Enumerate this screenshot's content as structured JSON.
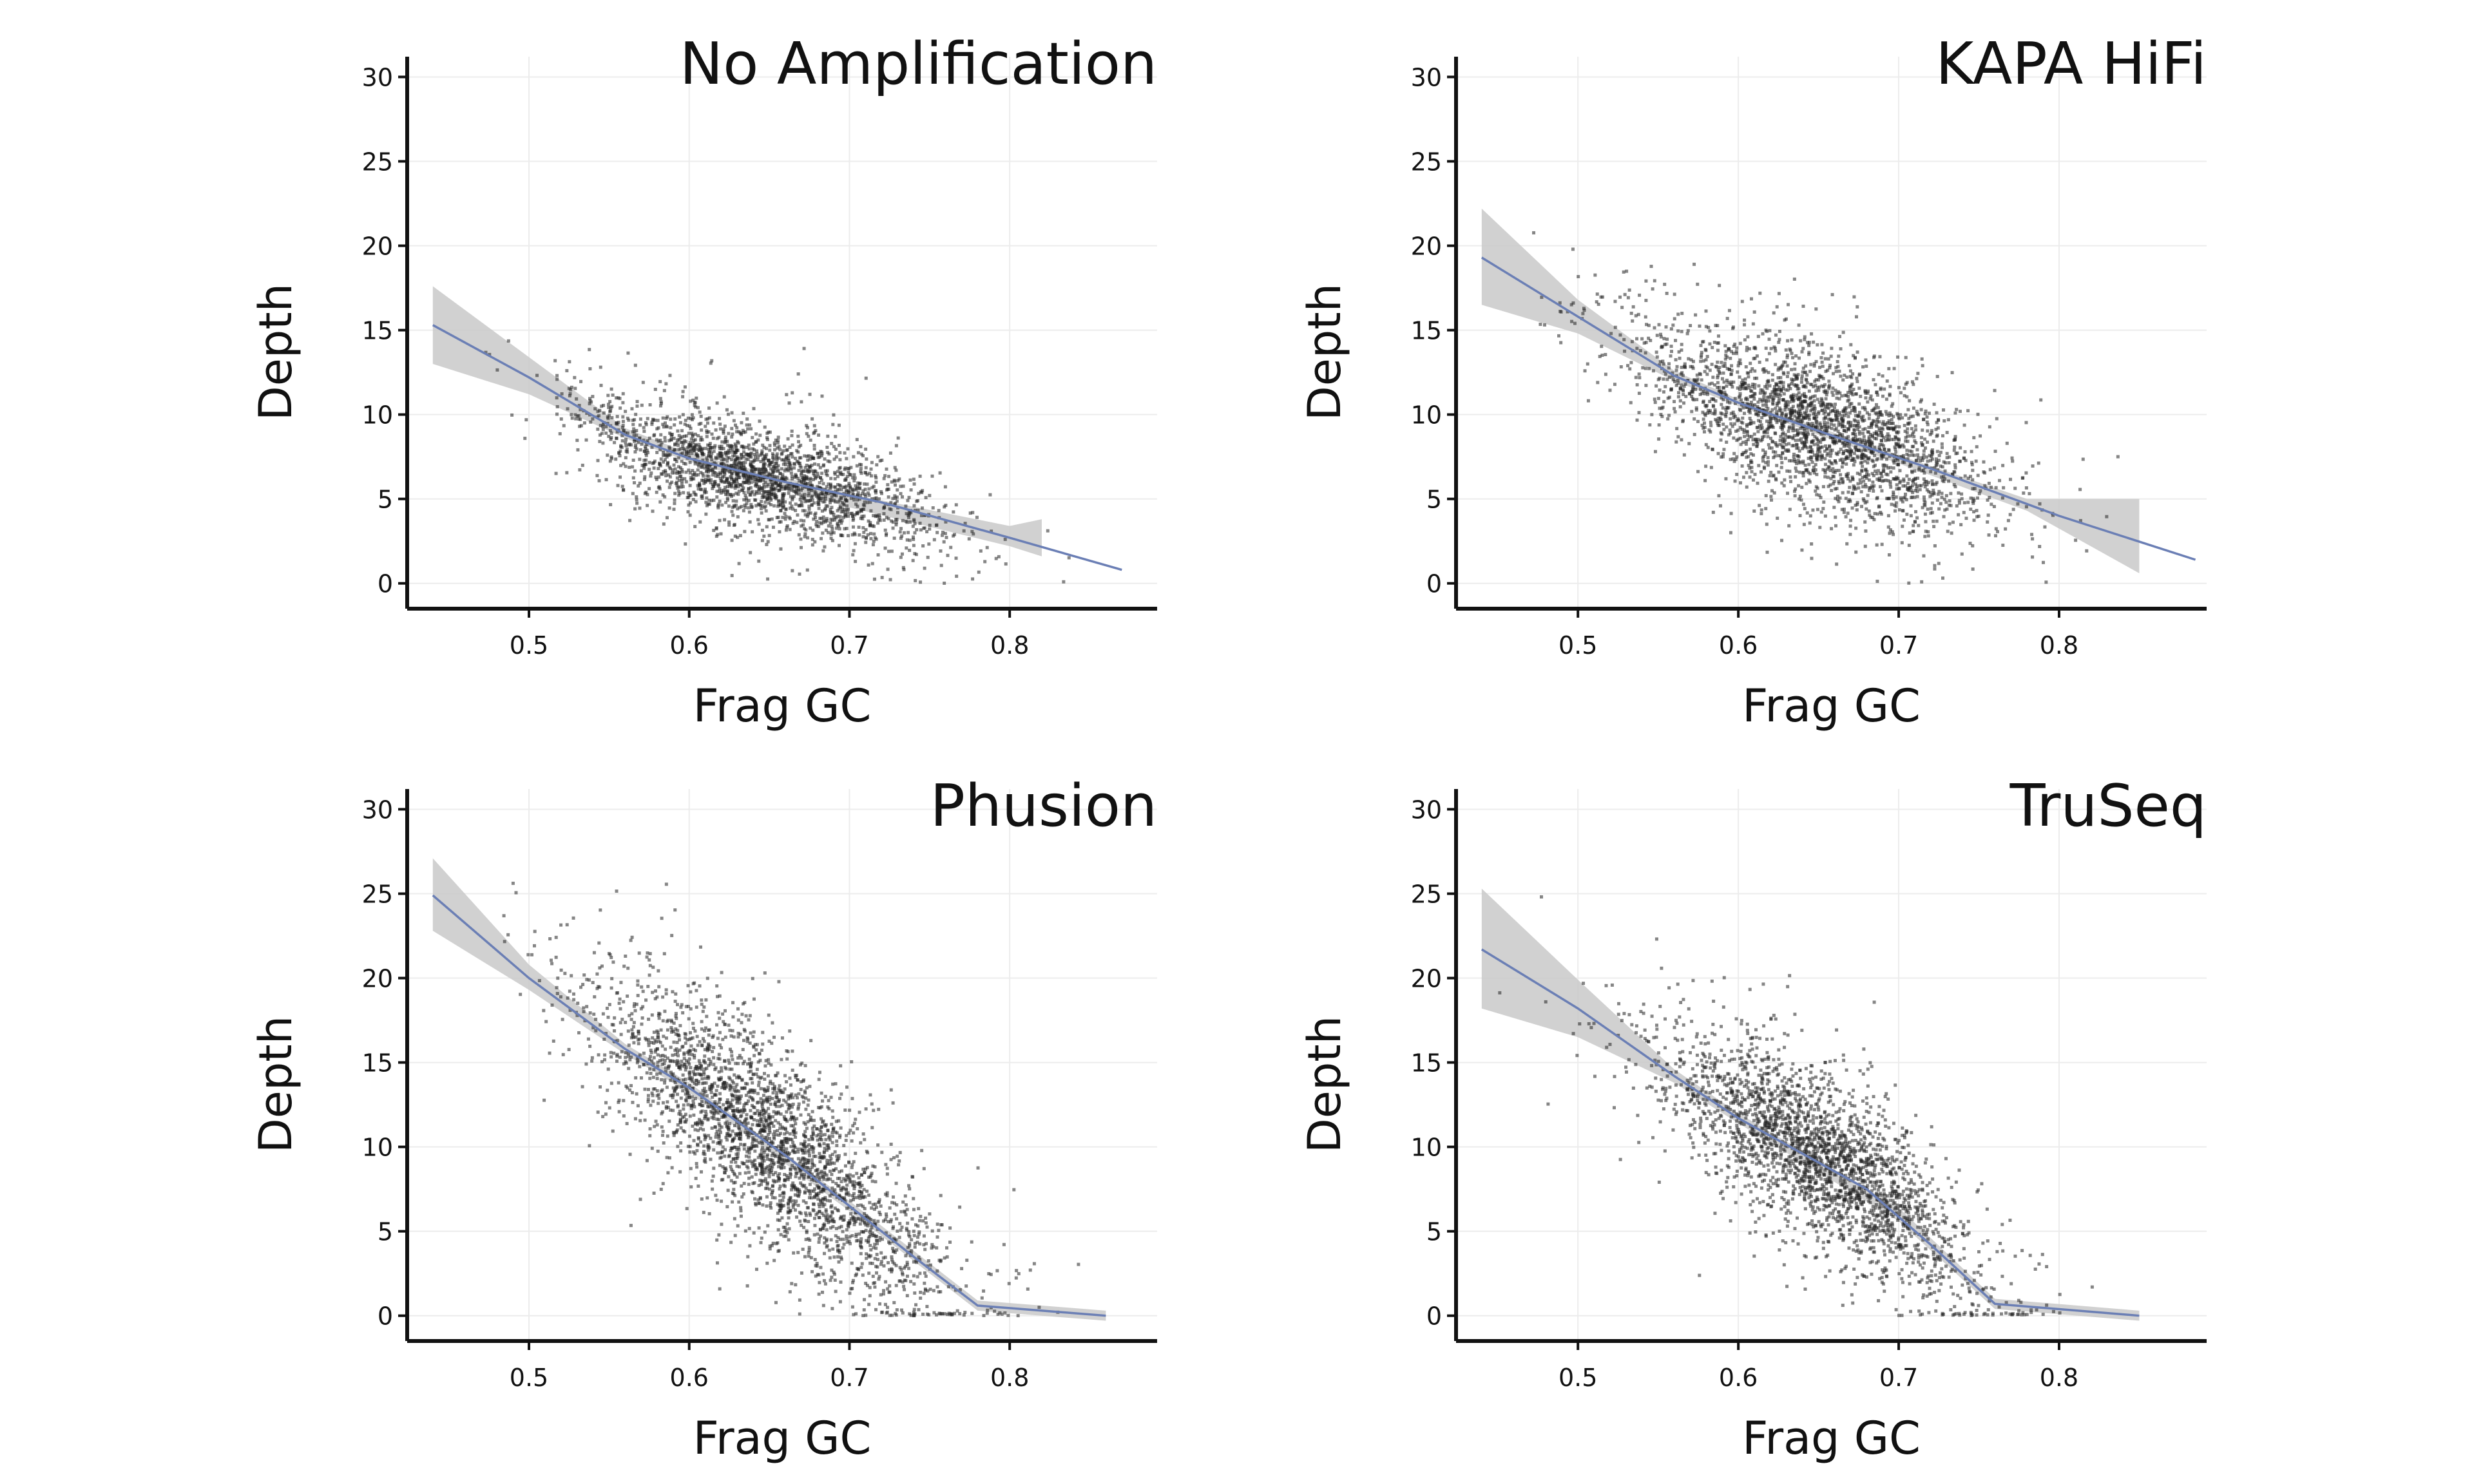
{
  "colors": {
    "points": "#222222",
    "band": "#c9c9c9",
    "trend": "#6b7fb5",
    "axis": "#111111",
    "grid": "#ececec"
  },
  "chart_data": [
    {
      "type": "scatter",
      "title": "No Amplification",
      "xlabel": "Frag GC",
      "ylabel": "Depth",
      "xlim": [
        0.424,
        0.892
      ],
      "ylim": [
        -1.5,
        31.2
      ],
      "xticks": [
        0.5,
        0.6,
        0.7,
        0.8
      ],
      "yticks": [
        0,
        5,
        10,
        15,
        20,
        25,
        30
      ],
      "grid": true,
      "point_cloud": {
        "x_center": 0.645,
        "x_spread": 0.055,
        "y_at_x": [
          [
            0.44,
            15.3
          ],
          [
            0.57,
            8.0
          ],
          [
            0.7,
            5.0
          ],
          [
            0.87,
            1.0
          ]
        ],
        "y_spread": 1.6,
        "n": 2200
      },
      "trend": {
        "x": [
          0.44,
          0.5,
          0.56,
          0.6,
          0.66,
          0.72,
          0.8,
          0.87
        ],
        "y": [
          15.3,
          12.2,
          8.8,
          7.4,
          6.0,
          4.8,
          2.7,
          0.8
        ]
      },
      "band": {
        "x": [
          0.44,
          0.5,
          0.56,
          0.6,
          0.7,
          0.8,
          0.82
        ],
        "lower": [
          13.0,
          11.2,
          8.6,
          7.2,
          4.5,
          2.2,
          1.6
        ],
        "upper": [
          17.6,
          13.4,
          9.2,
          7.7,
          5.3,
          3.4,
          3.8
        ]
      }
    },
    {
      "type": "scatter",
      "title": "KAPA HiFi",
      "xlabel": "Frag GC",
      "ylabel": "Depth",
      "xlim": [
        0.424,
        0.892
      ],
      "ylim": [
        -1.5,
        31.2
      ],
      "xticks": [
        0.5,
        0.6,
        0.7,
        0.8
      ],
      "yticks": [
        0,
        5,
        10,
        15,
        20,
        25,
        30
      ],
      "grid": true,
      "point_cloud": {
        "x_center": 0.65,
        "x_spread": 0.055,
        "y_at_x": [
          [
            0.44,
            19.5
          ],
          [
            0.56,
            12.3
          ],
          [
            0.7,
            7.5
          ],
          [
            0.88,
            1.5
          ]
        ],
        "y_spread": 2.3,
        "n": 2600
      },
      "trend": {
        "x": [
          0.44,
          0.5,
          0.56,
          0.6,
          0.66,
          0.72,
          0.8,
          0.885
        ],
        "y": [
          19.3,
          15.8,
          12.3,
          10.7,
          8.7,
          6.8,
          4.0,
          1.4
        ]
      },
      "band": {
        "x": [
          0.44,
          0.5,
          0.56,
          0.6,
          0.7,
          0.78,
          0.85
        ],
        "lower": [
          16.5,
          14.8,
          12.0,
          10.5,
          7.1,
          4.3,
          0.6
        ],
        "upper": [
          22.2,
          16.8,
          12.6,
          10.9,
          7.6,
          5.0,
          5.0
        ]
      }
    },
    {
      "type": "scatter",
      "title": "Phusion",
      "xlabel": "Frag GC",
      "ylabel": "Depth",
      "xlim": [
        0.424,
        0.892
      ],
      "ylim": [
        -1.5,
        31.2
      ],
      "xticks": [
        0.5,
        0.6,
        0.7,
        0.8
      ],
      "yticks": [
        0,
        5,
        10,
        15,
        20,
        25,
        30
      ],
      "grid": true,
      "point_cloud": {
        "x_center": 0.65,
        "x_spread": 0.055,
        "y_at_x": [
          [
            0.44,
            25.0
          ],
          [
            0.56,
            16.5
          ],
          [
            0.65,
            10.5
          ],
          [
            0.72,
            5.0
          ],
          [
            0.78,
            0.5
          ],
          [
            0.87,
            0.0
          ]
        ],
        "y_spread": 2.8,
        "n": 2800
      },
      "trend": {
        "x": [
          0.44,
          0.5,
          0.56,
          0.6,
          0.66,
          0.7,
          0.74,
          0.78,
          0.86
        ],
        "y": [
          24.9,
          20.0,
          15.8,
          13.5,
          9.5,
          6.5,
          3.5,
          0.6,
          0.0
        ]
      },
      "band": {
        "x": [
          0.44,
          0.5,
          0.56,
          0.6,
          0.7,
          0.78,
          0.86
        ],
        "lower": [
          22.8,
          19.3,
          15.5,
          13.2,
          6.2,
          0.3,
          -0.3
        ],
        "upper": [
          27.1,
          20.8,
          16.1,
          13.8,
          6.8,
          0.9,
          0.3
        ]
      }
    },
    {
      "type": "scatter",
      "title": "TruSeq",
      "xlabel": "Frag GC",
      "ylabel": "Depth",
      "xlim": [
        0.424,
        0.892
      ],
      "ylim": [
        -1.5,
        31.2
      ],
      "xticks": [
        0.5,
        0.6,
        0.7,
        0.8
      ],
      "yticks": [
        0,
        5,
        10,
        15,
        20,
        25,
        30
      ],
      "grid": true,
      "point_cloud": {
        "x_center": 0.65,
        "x_spread": 0.05,
        "y_at_x": [
          [
            0.44,
            21.7
          ],
          [
            0.56,
            14.0
          ],
          [
            0.64,
            10.0
          ],
          [
            0.7,
            6.5
          ],
          [
            0.77,
            0.5
          ],
          [
            0.86,
            0.0
          ]
        ],
        "y_spread": 2.5,
        "n": 2600
      },
      "trend": {
        "x": [
          0.44,
          0.5,
          0.56,
          0.6,
          0.64,
          0.68,
          0.72,
          0.76,
          0.85
        ],
        "y": [
          21.7,
          18.2,
          14.2,
          11.7,
          9.6,
          7.5,
          4.2,
          0.7,
          0.0
        ]
      },
      "band": {
        "x": [
          0.44,
          0.5,
          0.56,
          0.6,
          0.7,
          0.76,
          0.85
        ],
        "lower": [
          18.2,
          16.5,
          13.8,
          11.4,
          5.6,
          0.4,
          -0.3
        ],
        "upper": [
          25.3,
          19.9,
          14.6,
          12.0,
          6.4,
          1.0,
          0.3
        ]
      }
    }
  ]
}
